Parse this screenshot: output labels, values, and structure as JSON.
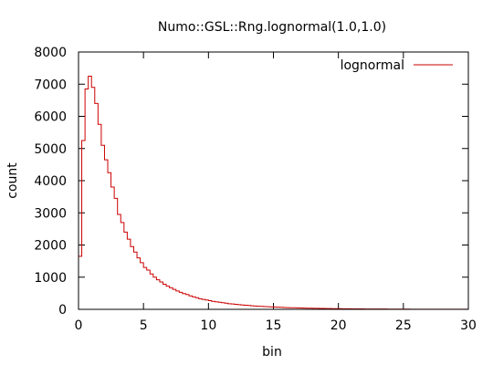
{
  "chart_data": {
    "type": "step",
    "title": "Numo::GSL::Rng.lognormal(1.0,1.0)",
    "xlabel": "bin",
    "ylabel": "count",
    "xlim": [
      0,
      30
    ],
    "ylim": [
      0,
      8000
    ],
    "x_ticks": [
      "0",
      "5",
      "10",
      "15",
      "20",
      "25",
      "30"
    ],
    "y_ticks": [
      "0",
      "1000",
      "2000",
      "3000",
      "4000",
      "5000",
      "6000",
      "7000",
      "8000"
    ],
    "grid": false,
    "legend_position": "top-right",
    "bin_width": 0.25,
    "series": [
      {
        "name": "lognormal",
        "color": "#cc0000",
        "values": [
          1650,
          5250,
          6850,
          7250,
          6900,
          6400,
          5750,
          5100,
          4650,
          4250,
          3800,
          3450,
          2950,
          2700,
          2400,
          2180,
          1950,
          1780,
          1600,
          1450,
          1300,
          1220,
          1100,
          1000,
          920,
          850,
          780,
          720,
          670,
          620,
          570,
          530,
          490,
          460,
          420,
          390,
          360,
          330,
          310,
          290,
          270,
          250,
          235,
          220,
          205,
          190,
          175,
          165,
          155,
          145,
          135,
          127,
          119,
          111,
          104,
          97,
          91,
          85,
          80,
          75,
          70,
          66,
          62,
          58,
          54,
          51,
          48,
          45,
          42,
          40,
          37,
          35,
          33,
          31,
          29,
          27,
          26,
          24,
          23,
          21,
          20,
          19,
          18,
          17,
          16,
          15,
          14,
          13,
          12,
          12,
          11,
          10,
          10,
          9,
          9,
          8,
          8,
          7,
          7,
          6,
          6,
          6,
          5,
          5,
          5,
          4,
          4,
          4,
          4,
          3,
          3,
          3,
          3,
          3,
          2,
          2,
          2,
          2,
          2,
          2
        ]
      }
    ]
  }
}
